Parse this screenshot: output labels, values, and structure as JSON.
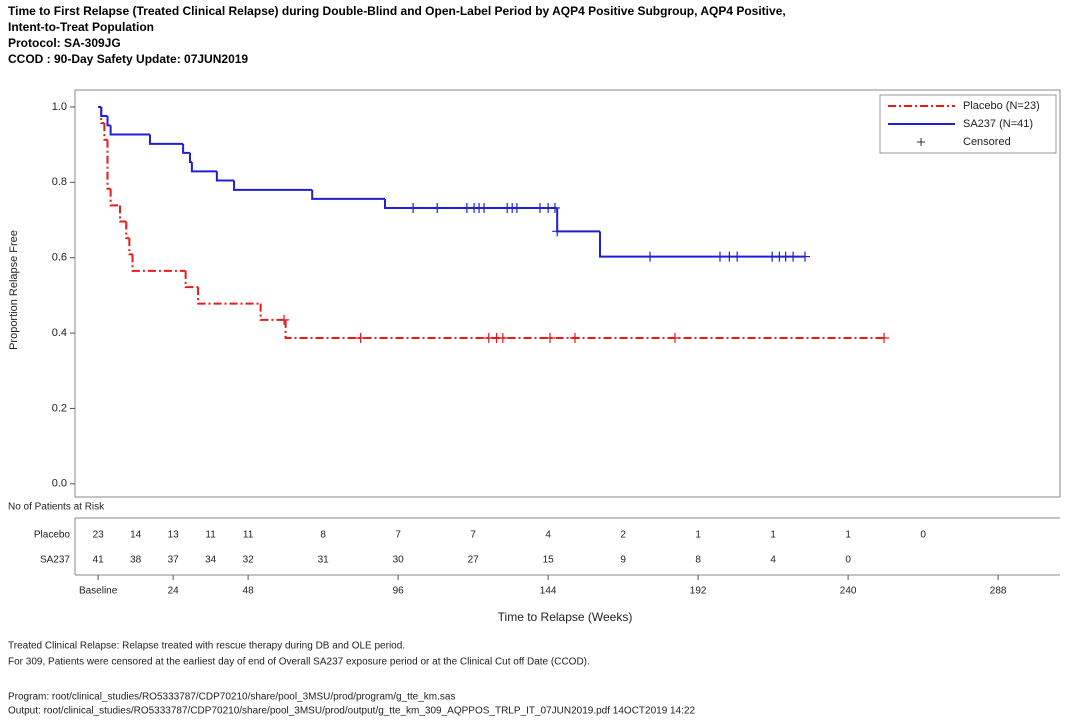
{
  "chart_data": {
    "type": "km",
    "title_lines": [
      "Time to First Relapse (Treated Clinical Relapse) during Double-Blind and Open-Label Period by AQP4 Positive Subgroup, AQP4 Positive,",
      "Intent-to-Treat Population",
      "Protocol: SA-309JG",
      "CCOD : 90-Day Safety Update: 07JUN2019"
    ],
    "x_label": "Time to Relapse (Weeks)",
    "y_label": "Proportion Relapse Free",
    "xlim": [
      -7.4,
      307.8
    ],
    "ylim": [
      -0.035,
      1.045
    ],
    "xticks": [
      {
        "value": 0,
        "label": "Baseline"
      },
      24,
      48,
      96,
      144,
      192,
      240,
      288
    ],
    "yticks": [
      {
        "value": 0,
        "label": "0.0"
      },
      0.2,
      0.4,
      0.6,
      0.8,
      {
        "value": 1,
        "label": "1.0"
      }
    ],
    "legend_position": "upper right",
    "censored_label": "Censored",
    "series": [
      {
        "name": "Placebo (N=23)",
        "color": "#e41a1c",
        "dash": "dashdot",
        "x": [
          0,
          1,
          2,
          3,
          4,
          7,
          9,
          10,
          11,
          28,
          32,
          52,
          60,
          251.5
        ],
        "values": [
          1,
          0.957,
          0.913,
          0.783,
          0.739,
          0.696,
          0.652,
          0.609,
          0.565,
          0.522,
          0.478,
          0.435,
          0.387,
          0.387
        ],
        "censor_x": [
          59.5,
          84,
          125,
          127.5,
          129.5,
          144.6,
          152.6,
          184.6,
          251.5
        ],
        "censor_values": [
          0.435,
          0.387,
          0.387,
          0.387,
          0.387,
          0.387,
          0.387,
          0.387,
          0.387
        ]
      },
      {
        "name": "SA237 (N=41)",
        "color": "#1f1fd6",
        "dash": "solid",
        "x": [
          0,
          1,
          3,
          4,
          16.6,
          27.2,
          29.4,
          30,
          38,
          43.5,
          68.5,
          91.8,
          146.9,
          160.6,
          226.2
        ],
        "values": [
          1,
          0.976,
          0.951,
          0.927,
          0.902,
          0.878,
          0.854,
          0.829,
          0.805,
          0.78,
          0.756,
          0.732,
          0.67,
          0.603,
          0.603
        ],
        "censor_x": [
          100.8,
          108.5,
          118,
          120.3,
          121.9,
          123.5,
          130.9,
          132.5,
          134,
          141.4,
          144,
          146.2,
          146.9,
          176.6,
          199,
          202,
          204.5,
          215.7,
          218,
          220,
          222.4,
          226.2
        ],
        "censor_values": [
          0.732,
          0.732,
          0.732,
          0.732,
          0.732,
          0.732,
          0.732,
          0.732,
          0.732,
          0.732,
          0.732,
          0.732,
          0.67,
          0.603,
          0.603,
          0.603,
          0.603,
          0.603,
          0.603,
          0.603,
          0.603,
          0.603
        ]
      }
    ],
    "risk_table": {
      "title": "No of Patients at Risk",
      "x": [
        0,
        12,
        24,
        36,
        48,
        72,
        96,
        120,
        144,
        168,
        192,
        216,
        240,
        264
      ],
      "rows": [
        {
          "label": "Placebo",
          "values": [
            23,
            14,
            13,
            11,
            11,
            8,
            7,
            7,
            4,
            2,
            1,
            1,
            1,
            0
          ]
        },
        {
          "label": "SA237",
          "values": [
            41,
            38,
            37,
            34,
            32,
            31,
            30,
            27,
            15,
            9,
            8,
            4,
            0,
            null
          ]
        }
      ]
    },
    "footnotes": [
      "Treated Clinical Relapse: Relapse treated with rescue therapy during DB and OLE period.",
      "For 309, Patients were censored at the earliest day of end of Overall SA237 exposure period or at the Clinical Cut off Date (CCOD).",
      "Program: root/clinical_studies/RO5333787/CDP70210/share/pool_3MSU/prod/program/g_tte_km.sas",
      "Output: root/clinical_studies/RO5333787/CDP70210/share/pool_3MSU/prod/output/g_tte_km_309_AQPPOS_TRLP_IT_07JUN2019.pdf 14OCT2019 14:22"
    ]
  }
}
